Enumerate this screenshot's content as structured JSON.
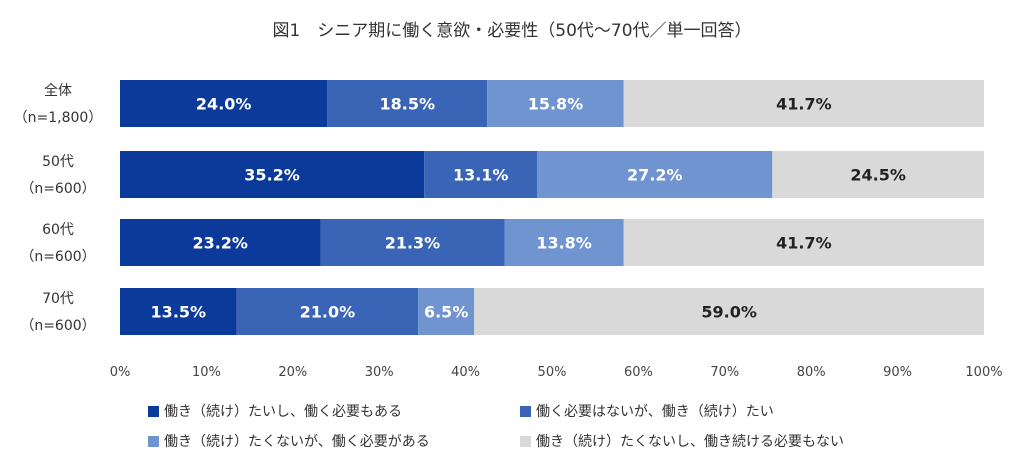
{
  "chart_data": {
    "type": "bar",
    "orientation": "horizontal",
    "stacked": true,
    "title": "図1　シニア期に働く意欲・必要性（50代～70代／単一回答）",
    "categories": [
      {
        "label": "全体",
        "sublabel": "（n=1,800）"
      },
      {
        "label": "50代",
        "sublabel": "（n=600）"
      },
      {
        "label": "60代",
        "sublabel": "（n=600）"
      },
      {
        "label": "70代",
        "sublabel": "（n=600）"
      }
    ],
    "series": [
      {
        "name": "働き（続け）たいし、働く必要もある",
        "color": "#0b3a9b",
        "values": [
          24.0,
          35.2,
          23.2,
          13.5
        ]
      },
      {
        "name": "働く必要はないが、働き（続け）たい",
        "color": "#3a64b5",
        "values": [
          18.5,
          13.1,
          21.3,
          21.0
        ]
      },
      {
        "name": "働き（続け）たくないが、働く必要がある",
        "color": "#7094d0",
        "values": [
          15.8,
          27.2,
          13.8,
          6.5
        ]
      },
      {
        "name": "働き（続け）たくないし、働き続ける必要もない",
        "color": "#d9d9d9",
        "values": [
          41.7,
          24.5,
          41.7,
          59.0
        ]
      }
    ],
    "xlim": [
      0,
      100
    ],
    "xticks": [
      "0%",
      "10%",
      "20%",
      "30%",
      "40%",
      "50%",
      "60%",
      "70%",
      "80%",
      "90%",
      "100%"
    ],
    "grid": false,
    "legend_position": "bottom"
  }
}
